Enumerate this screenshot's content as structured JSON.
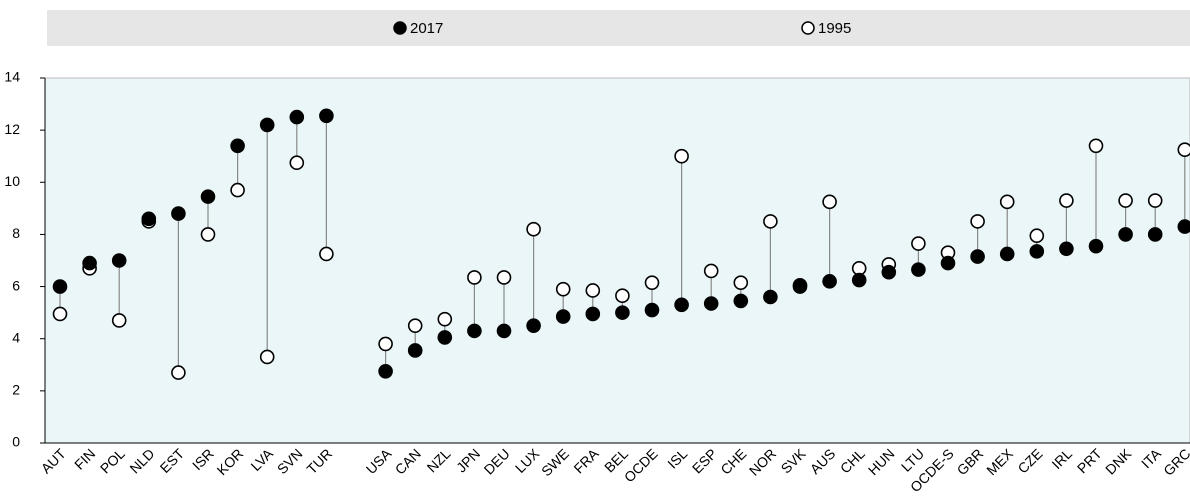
{
  "chart_data": {
    "type": "dumbbell",
    "categories": [
      "AUT",
      "FIN",
      "POL",
      "NLD",
      "EST",
      "ISR",
      "KOR",
      "LVA",
      "SVN",
      "TUR",
      null,
      "USA",
      "CAN",
      "NZL",
      "JPN",
      "DEU",
      "LUX",
      "SWE",
      "FRA",
      "BEL",
      "OCDE",
      "ISL",
      "ESP",
      "CHE",
      "NOR",
      "SVK",
      "AUS",
      "CHL",
      "HUN",
      "LTU",
      "OCDE-S",
      "GBR",
      "MEX",
      "CZE",
      "IRL",
      "PRT",
      "DNK",
      "ITA",
      "GRC"
    ],
    "series": [
      {
        "name": "2017",
        "color": "#000000",
        "values": [
          6.0,
          6.9,
          7.0,
          8.6,
          8.8,
          9.45,
          11.4,
          12.2,
          12.5,
          12.55,
          null,
          2.75,
          3.55,
          4.05,
          4.3,
          4.3,
          4.5,
          4.85,
          4.95,
          5.0,
          5.1,
          5.3,
          5.35,
          5.45,
          5.6,
          6.05,
          6.2,
          6.25,
          6.55,
          6.65,
          6.9,
          7.15,
          7.25,
          7.35,
          7.45,
          7.55,
          8.0,
          8.0,
          8.3
        ]
      },
      {
        "name": "1995",
        "color": "#ffffff",
        "values": [
          4.95,
          6.7,
          4.7,
          8.5,
          2.7,
          8.0,
          9.7,
          3.3,
          10.75,
          7.25,
          null,
          3.8,
          4.5,
          4.75,
          6.35,
          6.35,
          8.2,
          5.9,
          5.85,
          5.65,
          6.15,
          11.0,
          6.6,
          6.15,
          8.5,
          6.0,
          9.25,
          6.7,
          6.85,
          7.65,
          7.3,
          8.5,
          9.25,
          7.95,
          9.3,
          11.4,
          9.3,
          9.3,
          11.25
        ]
      }
    ],
    "ylim": [
      0,
      14
    ],
    "yticks": [
      0,
      2,
      4,
      6,
      8,
      10,
      12,
      14
    ]
  }
}
